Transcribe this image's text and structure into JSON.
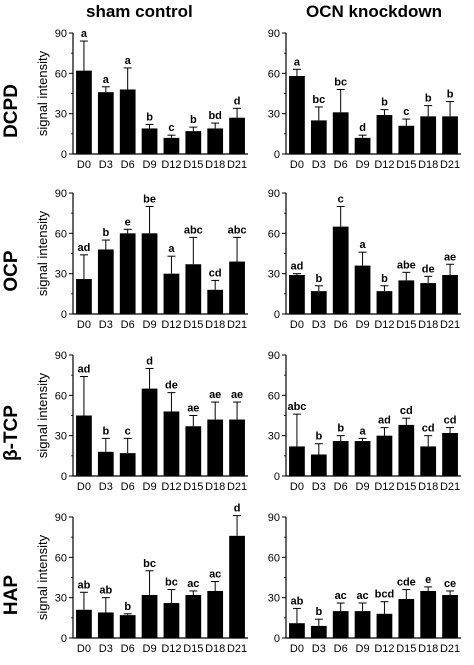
{
  "figure": {
    "column_titles": [
      "sham control",
      "OCN knockdown"
    ],
    "row_labels": [
      "DCPD",
      "OCP",
      "β-TCP",
      "HAP"
    ]
  },
  "chart_data": [
    {
      "type": "bar",
      "panel": "DCPD / sham control",
      "ylabel": "signal intensity",
      "ylim": [
        0,
        90
      ],
      "yticks": [
        0,
        30,
        60,
        90
      ],
      "categories": [
        "D0",
        "D3",
        "D6",
        "D9",
        "D12",
        "D15",
        "D18",
        "D21"
      ],
      "values": [
        62,
        46,
        48,
        19,
        12,
        17,
        19,
        27
      ],
      "errors": [
        22,
        4,
        16,
        3,
        2,
        3,
        4,
        7
      ],
      "annotations": [
        "a",
        "a",
        "a",
        "b",
        "c",
        "b",
        "bd",
        "d"
      ]
    },
    {
      "type": "bar",
      "panel": "DCPD / OCN knockdown",
      "ylabel": "",
      "ylim": [
        0,
        90
      ],
      "yticks": [
        0,
        30,
        60,
        90
      ],
      "categories": [
        "D0",
        "D3",
        "D6",
        "D9",
        "D12",
        "D15",
        "D18",
        "D21"
      ],
      "values": [
        58,
        25,
        31,
        12,
        29,
        21,
        28,
        28
      ],
      "errors": [
        5,
        10,
        17,
        2,
        4,
        5,
        8,
        11
      ],
      "annotations": [
        "a",
        "bc",
        "bc",
        "d",
        "b",
        "c",
        "b",
        "b"
      ]
    },
    {
      "type": "bar",
      "panel": "OCP / sham control",
      "ylabel": "signal intensity",
      "ylim": [
        0,
        90
      ],
      "yticks": [
        0,
        30,
        60,
        90
      ],
      "categories": [
        "D0",
        "D3",
        "D6",
        "D9",
        "D12",
        "D15",
        "D18",
        "D21"
      ],
      "values": [
        26,
        48,
        60,
        60,
        30,
        37,
        18,
        39
      ],
      "errors": [
        18,
        7,
        3,
        20,
        13,
        20,
        7,
        18
      ],
      "annotations": [
        "ad",
        "b",
        "e",
        "be",
        "a",
        "abc",
        "cd",
        "abc"
      ]
    },
    {
      "type": "bar",
      "panel": "OCP / OCN knockdown",
      "ylabel": "",
      "ylim": [
        0,
        90
      ],
      "yticks": [
        0,
        30,
        60,
        90
      ],
      "categories": [
        "D0",
        "D3",
        "D6",
        "D9",
        "D12",
        "D15",
        "D18",
        "D21"
      ],
      "values": [
        29,
        17,
        65,
        36,
        17,
        25,
        23,
        29
      ],
      "errors": [
        1,
        4,
        15,
        10,
        4,
        6,
        5,
        8
      ],
      "annotations": [
        "ad",
        "b",
        "c",
        "a",
        "b",
        "abe",
        "de",
        "ae"
      ]
    },
    {
      "type": "bar",
      "panel": "β-TCP / sham control",
      "ylabel": "signal intensity",
      "ylim": [
        0,
        90
      ],
      "yticks": [
        0,
        30,
        60,
        90
      ],
      "categories": [
        "D0",
        "D3",
        "D6",
        "D9",
        "D12",
        "D15",
        "D18",
        "D21"
      ],
      "values": [
        45,
        18,
        17,
        65,
        48,
        37,
        42,
        42
      ],
      "errors": [
        29,
        10,
        11,
        15,
        14,
        8,
        13,
        13
      ],
      "annotations": [
        "ad",
        "b",
        "c",
        "d",
        "de",
        "ae",
        "ae",
        "ae"
      ]
    },
    {
      "type": "bar",
      "panel": "β-TCP / OCN knockdown",
      "ylabel": "",
      "ylim": [
        0,
        90
      ],
      "yticks": [
        0,
        30,
        60,
        90
      ],
      "categories": [
        "D0",
        "D3",
        "D6",
        "D9",
        "D12",
        "D15",
        "D18",
        "D21"
      ],
      "values": [
        22,
        16,
        26,
        26,
        30,
        38,
        22,
        32
      ],
      "errors": [
        24,
        8,
        4,
        2,
        6,
        5,
        8,
        4
      ],
      "annotations": [
        "abc",
        "b",
        "b",
        "a",
        "ad",
        "cd",
        "cd",
        "cd"
      ]
    },
    {
      "type": "bar",
      "panel": "HAP / sham control",
      "ylabel": "signal intensity",
      "ylim": [
        0,
        90
      ],
      "yticks": [
        0,
        30,
        60,
        90
      ],
      "categories": [
        "D0",
        "D3",
        "D6",
        "D9",
        "D12",
        "D15",
        "D18",
        "D21"
      ],
      "values": [
        21,
        19,
        17,
        32,
        26,
        32,
        35,
        76
      ],
      "errors": [
        13,
        11,
        1,
        18,
        10,
        3,
        7,
        15
      ],
      "annotations": [
        "ab",
        "ab",
        "b",
        "bc",
        "bc",
        "ac",
        "ac",
        "d"
      ]
    },
    {
      "type": "bar",
      "panel": "HAP / OCN knockdown",
      "ylabel": "",
      "ylim": [
        0,
        90
      ],
      "yticks": [
        0,
        30,
        60,
        90
      ],
      "categories": [
        "D0",
        "D3",
        "D6",
        "D9",
        "D12",
        "D15",
        "D18",
        "D21"
      ],
      "values": [
        11,
        9,
        20,
        20,
        18,
        29,
        35,
        32
      ],
      "errors": [
        11,
        5,
        6,
        6,
        9,
        7,
        3,
        3
      ],
      "annotations": [
        "ab",
        "b",
        "ac",
        "ac",
        "bcd",
        "cde",
        "e",
        "ce"
      ]
    }
  ]
}
